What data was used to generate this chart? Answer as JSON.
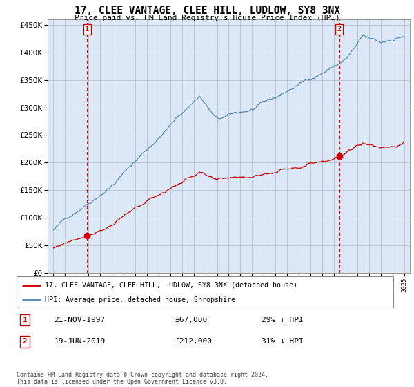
{
  "title": "17, CLEE VANTAGE, CLEE HILL, LUDLOW, SY8 3NX",
  "subtitle": "Price paid vs. HM Land Registry's House Price Index (HPI)",
  "legend_line1": "17, CLEE VANTAGE, CLEE HILL, LUDLOW, SY8 3NX (detached house)",
  "legend_line2": "HPI: Average price, detached house, Shropshire",
  "transaction1_date": "21-NOV-1997",
  "transaction1_price": "£67,000",
  "transaction1_hpi": "29% ↓ HPI",
  "transaction1_x": 1997.89,
  "transaction1_y": 67000,
  "transaction2_date": "19-JUN-2019",
  "transaction2_price": "£212,000",
  "transaction2_hpi": "31% ↓ HPI",
  "transaction2_x": 2019.46,
  "transaction2_y": 212000,
  "footer": "Contains HM Land Registry data © Crown copyright and database right 2024.\nThis data is licensed under the Open Government Licence v3.0.",
  "ylim_min": 0,
  "ylim_max": 460000,
  "yticks": [
    0,
    50000,
    100000,
    150000,
    200000,
    250000,
    300000,
    350000,
    400000,
    450000
  ],
  "xlim_min": 1994.5,
  "xlim_max": 2025.5,
  "background_color": "#ffffff",
  "plot_bg_color": "#dce8f5",
  "grid_color": "#aabbcc",
  "hpi_line_color": "#5588bb",
  "price_line_color": "#cc0000",
  "marker_color": "#cc0000",
  "dashed_line_color": "#cc0000",
  "transaction_box_color": "#cc0000"
}
